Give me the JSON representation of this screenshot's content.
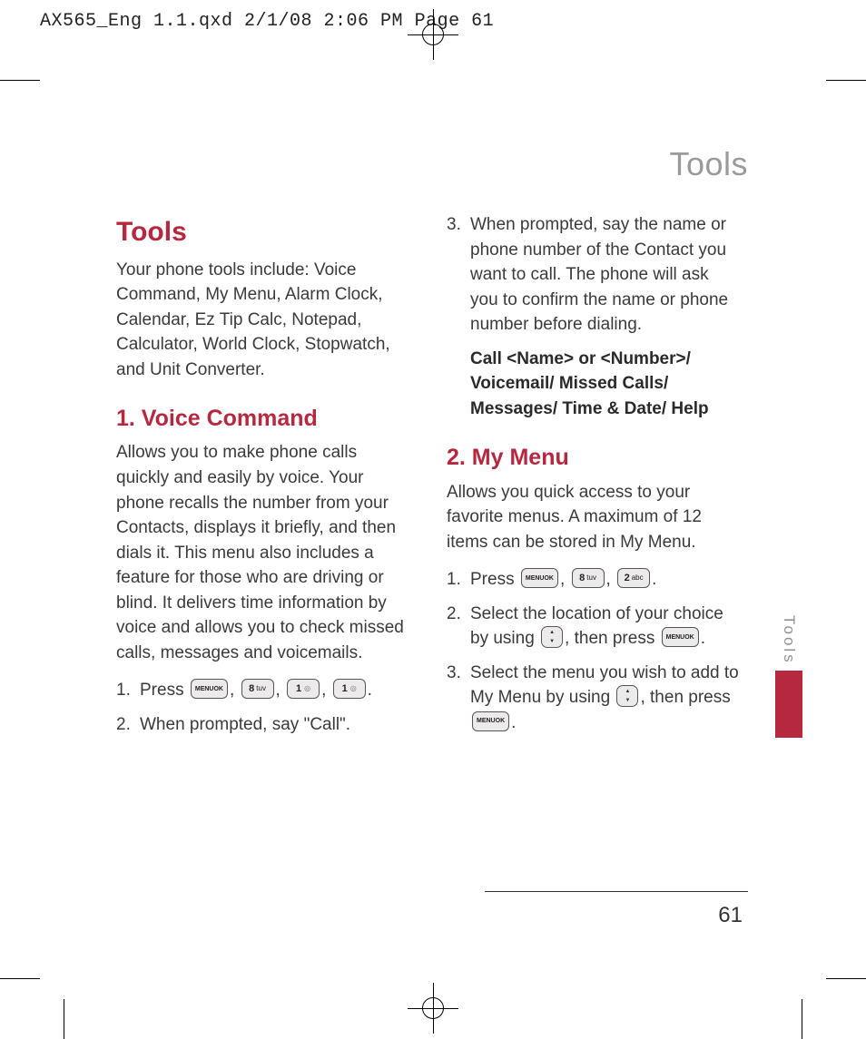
{
  "colors": {
    "accent": "#b6283f",
    "running_head": "#9a9a9a",
    "body_text": "#3a3a3a",
    "rule": "#333333",
    "key_border": "#555555",
    "key_fill": "#eceaea",
    "background": "#ffffff"
  },
  "typography": {
    "body_pt": 19,
    "h1_pt": 30,
    "h2_pt": 25,
    "running_head_pt": 36,
    "slug_pt": 20,
    "page_num_pt": 24
  },
  "slug": "AX565_Eng 1.1.qxd  2/1/08  2:06 PM  Page 61",
  "running_head": "Tools",
  "side_tab": "Tools",
  "page_number": "61",
  "tools": {
    "heading": "Tools",
    "intro": "Your phone tools include: Voice Command, My Menu, Alarm Clock, Calendar, Ez Tip Calc, Notepad, Calculator, World Clock, Stopwatch, and Unit Converter."
  },
  "voice_command": {
    "heading": "1. Voice Command",
    "intro": "Allows you to make phone calls quickly and easily by voice. Your phone recalls the number from your Contacts, displays it briefly, and then dials it. This menu also includes a feature for those who are driving or blind. It delivers time information by voice and allows you to check missed calls, messages and voicemails.",
    "step1_num": "1.",
    "step1_a": "Press ",
    "step2_num": "2.",
    "step2": "When prompted, say \"Call\".",
    "step3_num": "3.",
    "step3": "When prompted, say the name or phone number of the Contact you want to call. The phone will ask you to confirm the name or phone number before dialing.",
    "options": "Call <Name> or <Number>/ Voicemail/ Missed Calls/ Messages/ Time & Date/ Help"
  },
  "my_menu": {
    "heading": "2. My Menu",
    "intro": "Allows you quick access to your favorite menus. A maximum of 12 items can be stored in My Menu.",
    "step1_num": "1.",
    "step1_a": "Press ",
    "step2_num": "2.",
    "step2_a": "Select the location of your choice by using ",
    "step2_b": ", then press ",
    "step3_num": "3.",
    "step3_a": "Select the menu you wish to add to My Menu by using ",
    "step3_b": ", then press "
  },
  "keys": {
    "menu_ok_top": "MENU",
    "menu_ok_bottom": "OK"
  }
}
